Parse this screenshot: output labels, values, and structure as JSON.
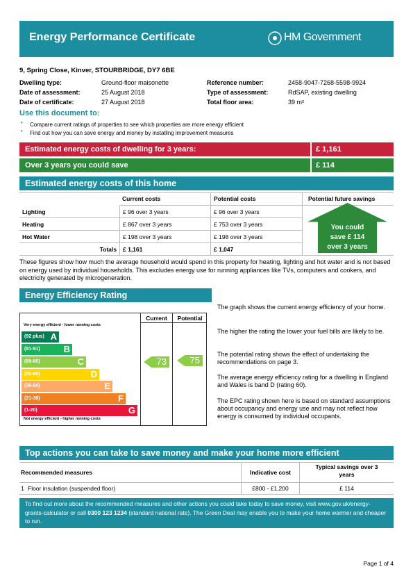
{
  "header": {
    "title": "Energy Performance Certificate",
    "logo": "HM Government"
  },
  "address": "9, Spring Close, Kinver, STOURBRIDGE, DY7 6BE",
  "details": [
    {
      "label": "Dwelling type:",
      "value": "Ground-floor maisonette"
    },
    {
      "label": "Date of assessment:",
      "value": "25 August 2018"
    },
    {
      "label": "Date of certificate:",
      "value": "27 August 2018"
    },
    {
      "label": "Reference number:",
      "value": "2458-9047-7268-5598-9924"
    },
    {
      "label": "Type of assessment:",
      "value": "RdSAP, existing dwelling"
    },
    {
      "label": "Total floor area:",
      "value": "39 m²"
    }
  ],
  "use": {
    "heading": "Use this document to:",
    "bullets": [
      "Compare current ratings of properties to see which properties are more energy efficient",
      "Find out how you can save energy and money by installing improvement measures"
    ]
  },
  "summary": [
    {
      "label": "Estimated energy costs of dwelling for 3 years:",
      "value": "£ 1,161"
    },
    {
      "label": "Over 3 years you could save",
      "value": "£ 114"
    }
  ],
  "costs": {
    "heading": "Estimated energy costs of this home",
    "columns": [
      "Current costs",
      "Potential costs",
      "Potential future savings"
    ],
    "rows": [
      [
        "Lighting",
        "£ 96 over 3 years",
        "£ 96 over 3 years"
      ],
      [
        "Heating",
        "£ 867 over 3 years",
        "£ 753 over 3 years"
      ],
      [
        "Hot Water",
        "£ 198 over 3 years",
        "£ 198 over 3 years"
      ]
    ],
    "totals": [
      "Totals",
      "£ 1,161",
      "£ 1,047"
    ],
    "savings_arrow": [
      "You could",
      "save £ 114",
      "over 3 years"
    ],
    "note": "These figures show how much the average household would spend in this property for heating, lighting and hot water and is not based on energy used by individual households. This excludes energy use for running appliances like TVs, computers and cookers, and electricity generated by microgeneration."
  },
  "rating": {
    "heading": "Energy Efficiency Rating",
    "columns": [
      "Current",
      "Potential"
    ],
    "top_note": "Very energy efficient - lower running costs",
    "bottom_note": "Not energy efficient - higher running costs",
    "bands": [
      {
        "range": "(92 plus)",
        "letter": "A"
      },
      {
        "range": "(81-91)",
        "letter": "B"
      },
      {
        "range": "(69-80)",
        "letter": "C"
      },
      {
        "range": "(55-68)",
        "letter": "D"
      },
      {
        "range": "(39-54)",
        "letter": "E"
      },
      {
        "range": "(21-38)",
        "letter": "F"
      },
      {
        "range": "(1-20)",
        "letter": "G"
      }
    ],
    "current": 73,
    "potential": 75,
    "paragraphs": [
      "The graph shows the current energy efficiency of your home.",
      "The higher the rating the lower your fuel bills are likely to be.",
      "The potential rating shows the effect of undertaking the recommendations on page 3.",
      "The average energy efficiency rating for a dwelling in England and Wales is band D (rating 60).",
      "The EPC rating shown here is based on standard assumptions about occupancy and energy use and may not reflect how energy is consumed by individual occupants."
    ]
  },
  "actions": {
    "heading": "Top actions you can take to save money and make your home more efficient",
    "columns": [
      "Recommended measures",
      "Indicative cost",
      "Typical savings over 3 years"
    ],
    "rows": [
      [
        "1",
        "Floor insulation (suspended floor)",
        "£800 - £1,200",
        "£ 114"
      ]
    ]
  },
  "info": [
    "To find out more about the recommended measures and other actions you could take today to save money, visit www.gov.uk/energy-grants-calculator or call ",
    "0300 123 1234",
    " (standard national rate). The Green Deal may enable you to make your home warmer and cheaper to run."
  ],
  "footer": "Page 1 of 4"
}
